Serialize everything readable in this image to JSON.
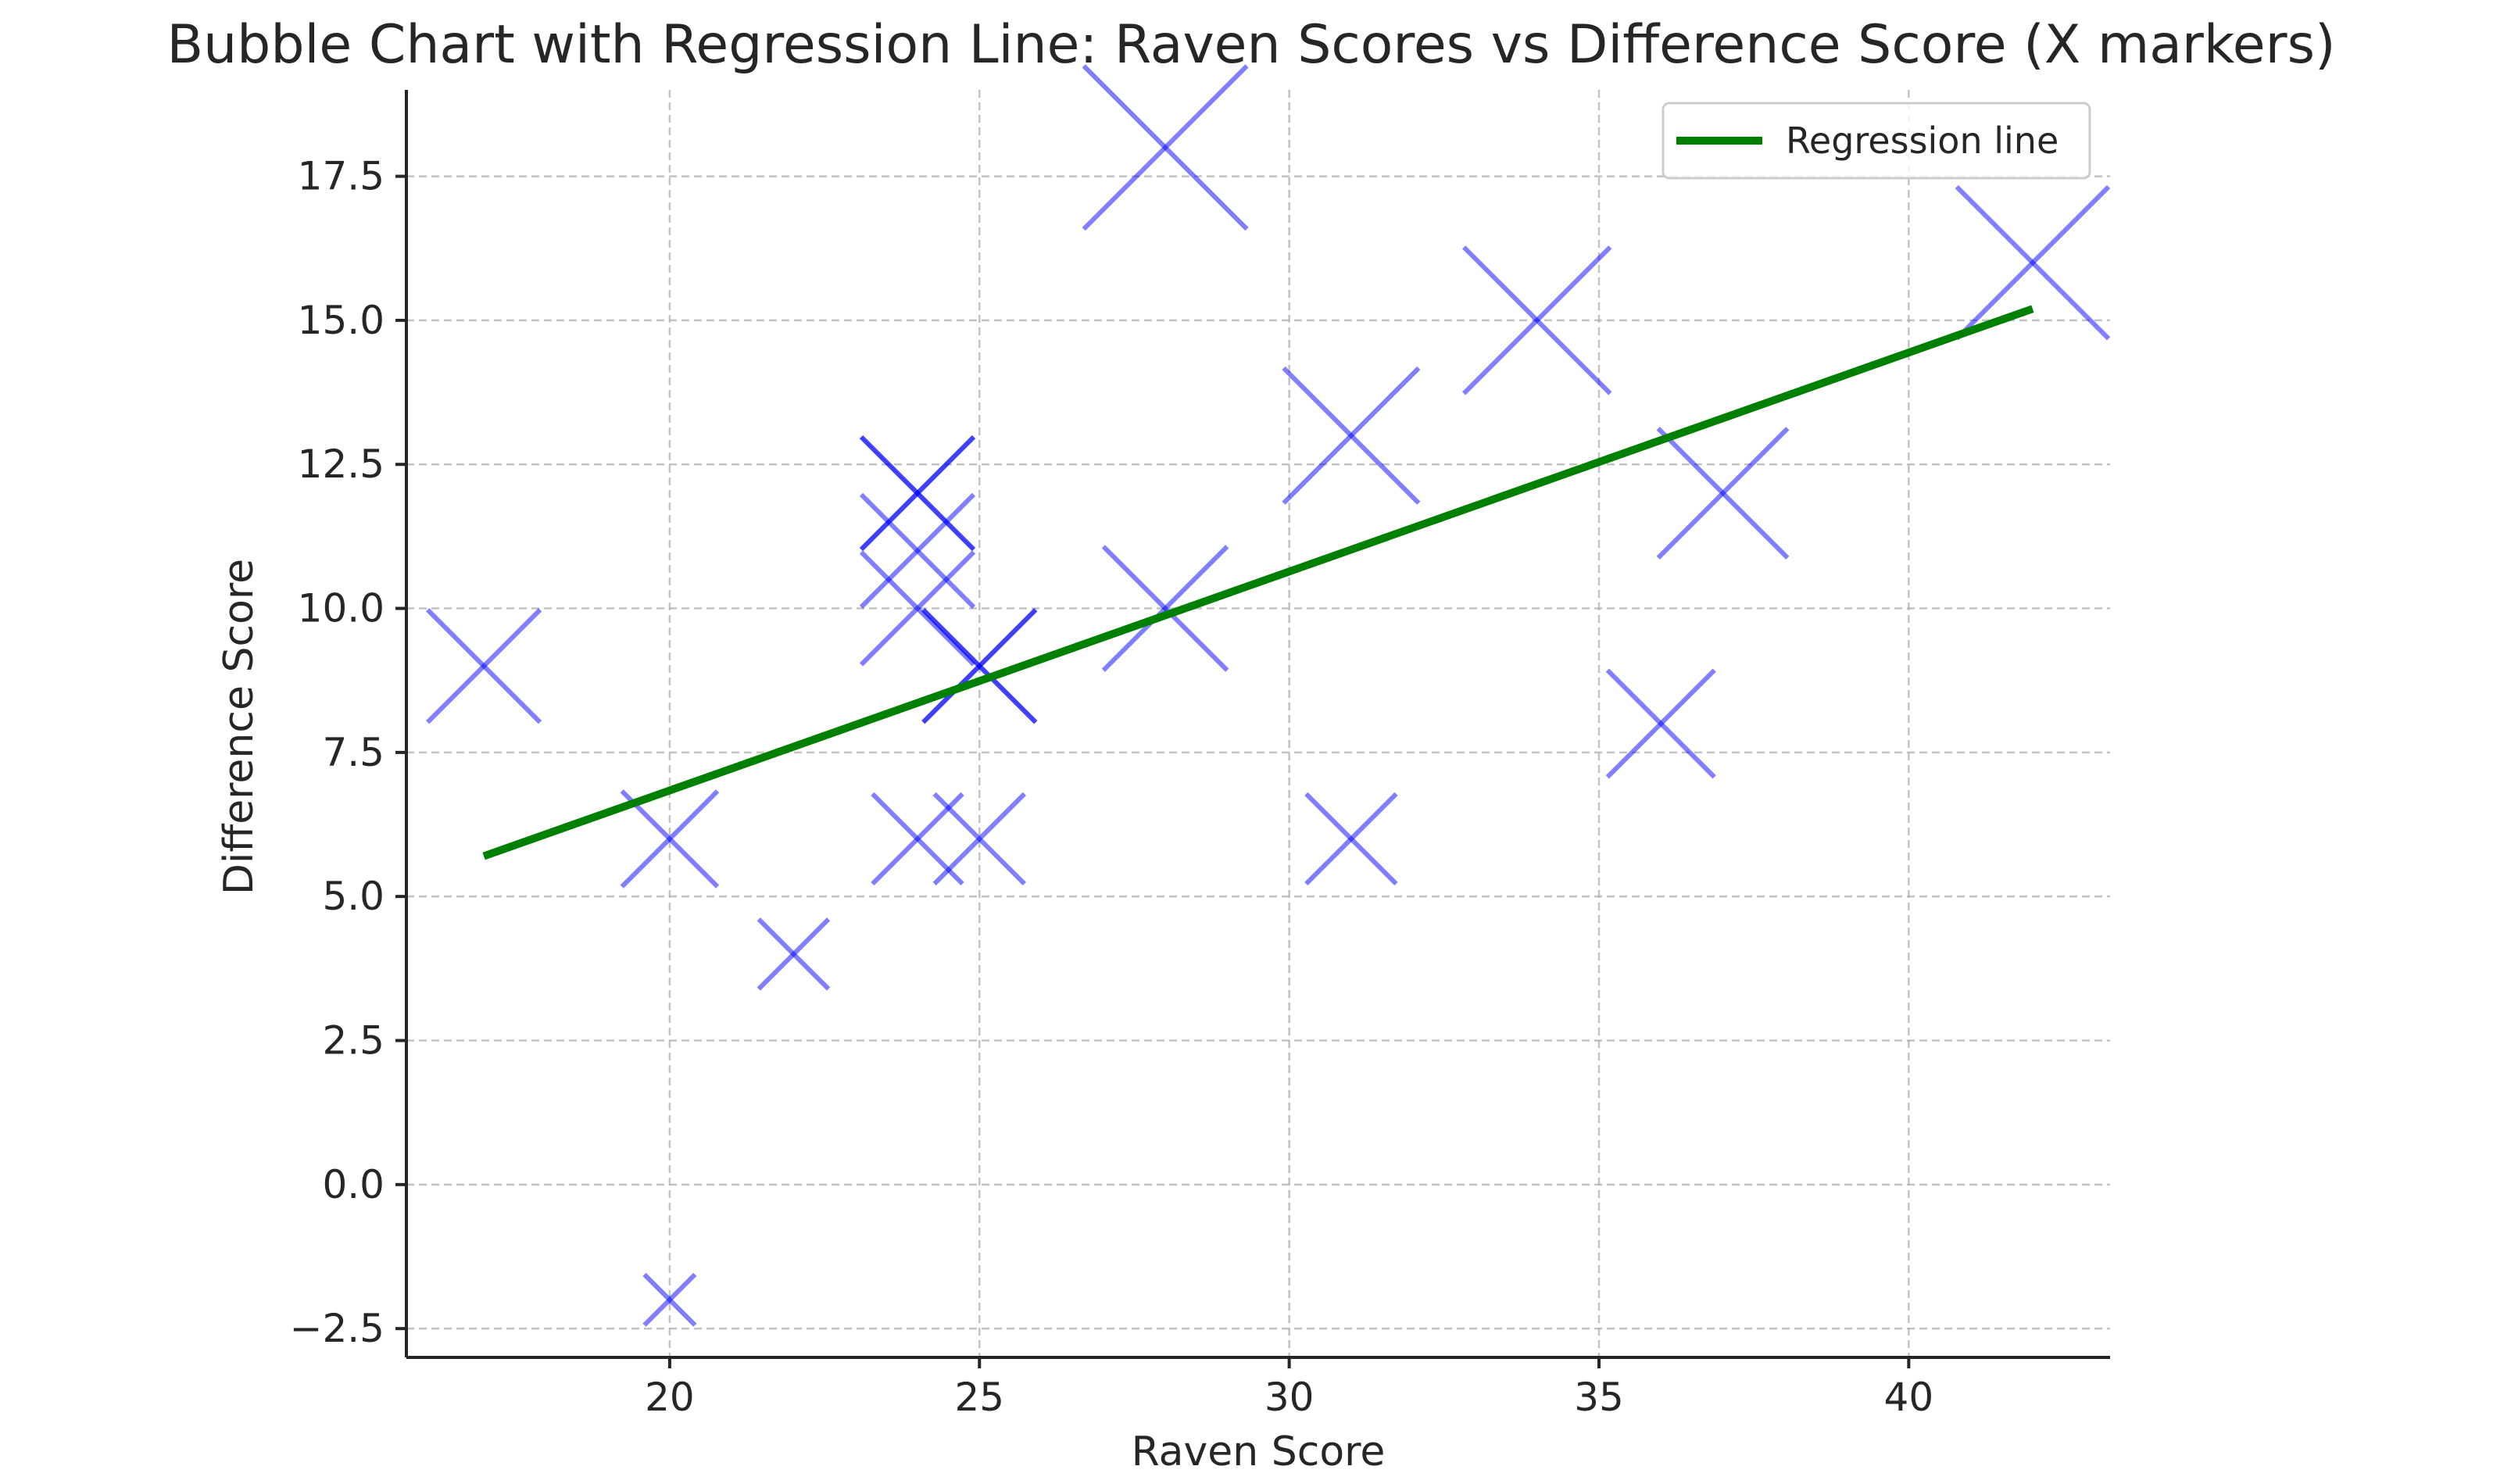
{
  "chart_data": {
    "type": "scatter",
    "title": "Bubble Chart with Regression Line: Raven Scores vs Difference Score (X markers)",
    "xlabel": "Raven Score",
    "ylabel": "Difference Score",
    "xlim": [
      15.75,
      43.25
    ],
    "ylim": [
      -3.0,
      19.0
    ],
    "xticks": [
      20,
      25,
      30,
      35,
      40
    ],
    "xtick_labels": [
      "20",
      "25",
      "30",
      "35",
      "40"
    ],
    "yticks": [
      -2.5,
      0.0,
      2.5,
      5.0,
      7.5,
      10.0,
      12.5,
      15.0,
      17.5
    ],
    "ytick_labels": [
      "−2.5",
      "0.0",
      "2.5",
      "5.0",
      "7.5",
      "10.0",
      "12.5",
      "15.0",
      "17.5"
    ],
    "grid": true,
    "legend_position": "top-right",
    "series": [
      {
        "marker": "x",
        "color": "#0000ff",
        "alpha": 0.5,
        "points": [
          {
            "x": 17,
            "y": 9,
            "size": 1.0
          },
          {
            "x": 20,
            "y": 6,
            "size": 0.85
          },
          {
            "x": 20,
            "y": -2,
            "size": 0.45
          },
          {
            "x": 22,
            "y": 4,
            "size": 0.62
          },
          {
            "x": 24,
            "y": 6,
            "size": 0.8
          },
          {
            "x": 25,
            "y": 6,
            "size": 0.8
          },
          {
            "x": 24,
            "y": 10,
            "size": 1.0
          },
          {
            "x": 24,
            "y": 11,
            "size": 1.0
          },
          {
            "x": 24,
            "y": 12,
            "size": 1.0
          },
          {
            "x": 25,
            "y": 9,
            "size": 1.0
          },
          {
            "x": 24,
            "y": 12,
            "size": 1.0
          },
          {
            "x": 25,
            "y": 9,
            "size": 1.0
          },
          {
            "x": 28,
            "y": 10,
            "size": 1.1
          },
          {
            "x": 28,
            "y": 18,
            "size": 1.45
          },
          {
            "x": 31,
            "y": 13,
            "size": 1.2
          },
          {
            "x": 31,
            "y": 6,
            "size": 0.8
          },
          {
            "x": 34,
            "y": 15,
            "size": 1.3
          },
          {
            "x": 36,
            "y": 8,
            "size": 0.95
          },
          {
            "x": 37,
            "y": 12,
            "size": 1.15
          },
          {
            "x": 42,
            "y": 16,
            "size": 1.35
          }
        ]
      }
    ],
    "regression": {
      "name": "Regression line",
      "color": "#008000",
      "x": [
        17,
        42
      ],
      "y": [
        5.7,
        15.2
      ]
    }
  }
}
